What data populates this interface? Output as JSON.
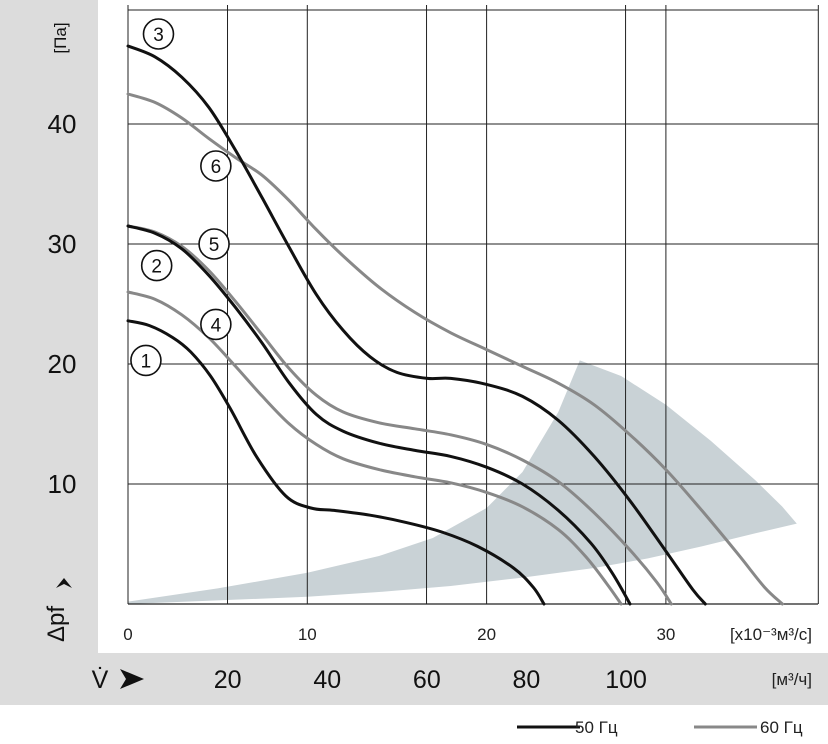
{
  "chart_data": {
    "type": "line",
    "title": "",
    "x_axis": {
      "label": "V̇",
      "unit": "[x10⁻³м³/с]",
      "ticks": [
        "0",
        "10",
        "20",
        "30"
      ],
      "range": [
        0,
        38.5
      ]
    },
    "x2_axis": {
      "unit": "[м³/ч]",
      "ticks": [
        20,
        40,
        60,
        80,
        100
      ],
      "tick_labels": [
        "20",
        "40",
        "60",
        "80",
        "100"
      ]
    },
    "y_axis": {
      "label": "Δpf",
      "unit": "[Па]",
      "ticks": [
        "10",
        "20",
        "30",
        "40"
      ],
      "range": [
        0,
        50
      ]
    },
    "grid": true,
    "legend": {
      "placement": "bottom-right",
      "entries": [
        {
          "label": "50 Гц",
          "color": "#111111"
        },
        {
          "label": "60 Гц",
          "color": "#888888"
        }
      ]
    },
    "series": [
      {
        "id": "1",
        "label": "1",
        "color": "#111111",
        "label_at": [
          1.0,
          20.3
        ],
        "points": [
          [
            0,
            23.6
          ],
          [
            1.2,
            23.2
          ],
          [
            2.5,
            22.2
          ],
          [
            3.5,
            21.0
          ],
          [
            4.6,
            19.0
          ],
          [
            5.7,
            16.3
          ],
          [
            7.2,
            12.2
          ],
          [
            8.8,
            9.0
          ],
          [
            10.2,
            8.0
          ],
          [
            11.5,
            7.8
          ],
          [
            13.5,
            7.4
          ],
          [
            15.5,
            6.8
          ],
          [
            17.5,
            6.0
          ],
          [
            19.5,
            4.8
          ],
          [
            21.5,
            3.0
          ],
          [
            22.6,
            1.4
          ],
          [
            23.2,
            0
          ]
        ]
      },
      {
        "id": "2",
        "label": "2",
        "color": "#111111",
        "label_at": [
          1.6,
          28.2
        ],
        "points": [
          [
            0,
            31.5
          ],
          [
            1.5,
            30.9
          ],
          [
            3,
            29.6
          ],
          [
            4.5,
            27.4
          ],
          [
            6,
            24.7
          ],
          [
            7.5,
            21.7
          ],
          [
            9,
            18.4
          ],
          [
            10.5,
            15.8
          ],
          [
            12,
            14.4
          ],
          [
            14,
            13.4
          ],
          [
            16,
            12.8
          ],
          [
            18,
            12.3
          ],
          [
            20,
            11.4
          ],
          [
            22,
            10.0
          ],
          [
            24,
            7.8
          ],
          [
            25.8,
            5.1
          ],
          [
            27,
            2.6
          ],
          [
            28,
            0
          ]
        ]
      },
      {
        "id": "3",
        "label": "3",
        "color": "#111111",
        "label_at": [
          1.7,
          47.5
        ],
        "points": [
          [
            0,
            46.5
          ],
          [
            1.5,
            45.6
          ],
          [
            3,
            43.9
          ],
          [
            4.5,
            41.4
          ],
          [
            6,
            37.8
          ],
          [
            7.5,
            33.8
          ],
          [
            9,
            29.7
          ],
          [
            10.5,
            25.8
          ],
          [
            12,
            22.8
          ],
          [
            13.5,
            20.6
          ],
          [
            15,
            19.3
          ],
          [
            16.7,
            18.8
          ],
          [
            18,
            18.8
          ],
          [
            20,
            18.3
          ],
          [
            22,
            17.3
          ],
          [
            24,
            15.3
          ],
          [
            26,
            12.3
          ],
          [
            28,
            8.6
          ],
          [
            30,
            4.4
          ],
          [
            31.5,
            1.2
          ],
          [
            32.2,
            0
          ]
        ]
      },
      {
        "id": "4",
        "label": "4",
        "color": "#888888",
        "label_at": [
          4.9,
          23.3
        ],
        "points": [
          [
            0,
            26.0
          ],
          [
            1.5,
            25.4
          ],
          [
            3,
            24.1
          ],
          [
            4.5,
            22.2
          ],
          [
            6,
            19.8
          ],
          [
            7.5,
            17.3
          ],
          [
            9,
            15.0
          ],
          [
            10.5,
            13.3
          ],
          [
            12,
            12.1
          ],
          [
            14,
            11.2
          ],
          [
            16,
            10.6
          ],
          [
            18,
            10.1
          ],
          [
            20,
            9.3
          ],
          [
            22,
            8.1
          ],
          [
            24,
            6.2
          ],
          [
            25.5,
            4.0
          ],
          [
            26.7,
            1.7
          ],
          [
            27.5,
            0
          ]
        ]
      },
      {
        "id": "5",
        "label": "5",
        "color": "#888888",
        "label_at": [
          4.8,
          30.0
        ],
        "points": [
          [
            0,
            31.5
          ],
          [
            1.5,
            31.0
          ],
          [
            3,
            29.8
          ],
          [
            4.5,
            27.8
          ],
          [
            6,
            25.2
          ],
          [
            7.5,
            22.4
          ],
          [
            9,
            19.6
          ],
          [
            10.5,
            17.4
          ],
          [
            12,
            16.0
          ],
          [
            14,
            15.1
          ],
          [
            16,
            14.6
          ],
          [
            18,
            14.1
          ],
          [
            20,
            13.3
          ],
          [
            22,
            12.0
          ],
          [
            24,
            10.2
          ],
          [
            26,
            7.6
          ],
          [
            28,
            4.5
          ],
          [
            29.5,
            1.8
          ],
          [
            30.3,
            0
          ]
        ]
      },
      {
        "id": "6",
        "label": "6",
        "color": "#888888",
        "label_at": [
          4.9,
          36.5
        ],
        "points": [
          [
            0,
            42.5
          ],
          [
            1.5,
            41.8
          ],
          [
            3,
            40.5
          ],
          [
            4.5,
            38.8
          ],
          [
            6,
            37.2
          ],
          [
            7.5,
            35.7
          ],
          [
            9,
            33.6
          ],
          [
            10.5,
            31.2
          ],
          [
            12,
            29.0
          ],
          [
            14,
            26.4
          ],
          [
            16,
            24.3
          ],
          [
            18,
            22.6
          ],
          [
            20,
            21.2
          ],
          [
            22,
            19.8
          ],
          [
            24,
            18.4
          ],
          [
            26,
            16.6
          ],
          [
            28,
            14.1
          ],
          [
            30,
            11.2
          ],
          [
            32,
            7.8
          ],
          [
            34,
            4.2
          ],
          [
            35.5,
            1.4
          ],
          [
            36.5,
            0
          ]
        ]
      }
    ],
    "shaded_region": {
      "color": "#c9d2d6",
      "points": [
        [
          0,
          0.2
        ],
        [
          5,
          1.3
        ],
        [
          10,
          2.6
        ],
        [
          14,
          4.0
        ],
        [
          17,
          5.5
        ],
        [
          20,
          8.0
        ],
        [
          22,
          11.0
        ],
        [
          24,
          16.0
        ],
        [
          25.2,
          20.3
        ],
        [
          27.5,
          19.0
        ],
        [
          30,
          16.6
        ],
        [
          32.5,
          13.6
        ],
        [
          35,
          10.3
        ],
        [
          36.5,
          8.1
        ],
        [
          37.3,
          6.7
        ],
        [
          35,
          5.9
        ],
        [
          32,
          4.8
        ],
        [
          29,
          3.8
        ],
        [
          26,
          3.0
        ],
        [
          22,
          2.2
        ],
        [
          18,
          1.5
        ],
        [
          14,
          1.0
        ],
        [
          10,
          0.6
        ],
        [
          5,
          0.3
        ],
        [
          0,
          0
        ]
      ]
    }
  }
}
